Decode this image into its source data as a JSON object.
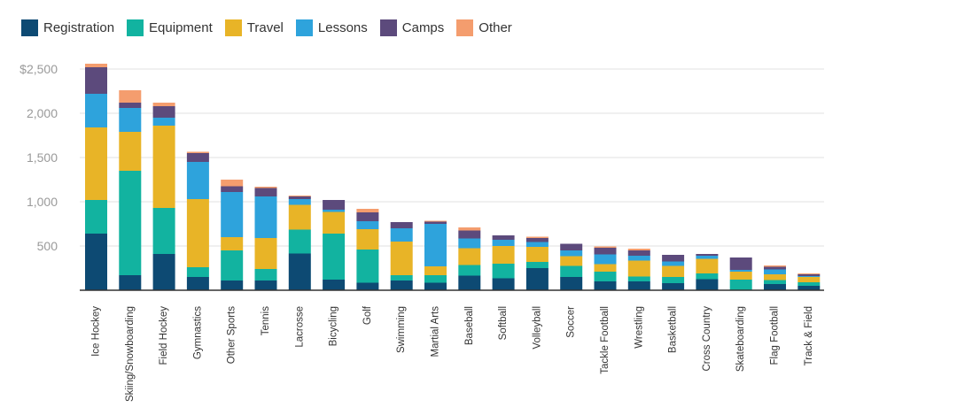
{
  "chart_data": {
    "type": "bar",
    "stacked": true,
    "categories": [
      "Ice Hockey",
      "Skiing/Snowboarding",
      "Field Hockey",
      "Gymnastics",
      "Other Sports",
      "Tennis",
      "Lacrosse",
      "Bicycling",
      "Golf",
      "Swimming",
      "Martial Arts",
      "Baseball",
      "Softball",
      "Volleyball",
      "Soccer",
      "Tackle Football",
      "Wrestling",
      "Basketball",
      "Cross Country",
      "Skateboarding",
      "Flag Football",
      "Track & Field"
    ],
    "series": [
      {
        "name": "Registration",
        "color": "#0d4a73",
        "values": [
          640,
          170,
          410,
          150,
          110,
          110,
          415,
          120,
          85,
          110,
          85,
          165,
          135,
          250,
          150,
          100,
          100,
          80,
          125,
          0,
          70,
          50
        ]
      },
      {
        "name": "Equipment",
        "color": "#12b3a0",
        "values": [
          380,
          1180,
          520,
          110,
          340,
          130,
          270,
          520,
          375,
          60,
          85,
          120,
          165,
          70,
          125,
          110,
          55,
          70,
          65,
          120,
          45,
          40
        ]
      },
      {
        "name": "Travel",
        "color": "#e8b427",
        "values": [
          820,
          440,
          930,
          770,
          150,
          350,
          280,
          245,
          230,
          380,
          100,
          190,
          200,
          170,
          110,
          85,
          180,
          125,
          165,
          90,
          65,
          60
        ]
      },
      {
        "name": "Lessons",
        "color": "#2ea3dc",
        "values": [
          380,
          270,
          90,
          420,
          510,
          470,
          65,
          25,
          90,
          150,
          480,
          110,
          70,
          55,
          65,
          110,
          55,
          50,
          35,
          20,
          55,
          10
        ]
      },
      {
        "name": "Camps",
        "color": "#5c4a7c",
        "values": [
          300,
          60,
          130,
          100,
          65,
          95,
          30,
          110,
          100,
          70,
          25,
          90,
          50,
          45,
          75,
          75,
          60,
          75,
          20,
          140,
          30,
          20
        ]
      },
      {
        "name": "Other",
        "color": "#f49d6e",
        "values": [
          40,
          140,
          40,
          15,
          75,
          15,
          10,
          0,
          40,
          0,
          10,
          35,
          0,
          15,
          0,
          15,
          20,
          0,
          0,
          0,
          15,
          10
        ]
      }
    ],
    "y_ticks": [
      {
        "value": 500,
        "label": "500"
      },
      {
        "value": 1000,
        "label": "1,000"
      },
      {
        "value": 1500,
        "label": "1,500"
      },
      {
        "value": 2000,
        "label": "2,000"
      },
      {
        "value": 2500,
        "label": "$2,500"
      }
    ],
    "ylim": [
      0,
      2600
    ],
    "grid": true,
    "legend_position": "top-left",
    "title": "",
    "xlabel": "",
    "ylabel": ""
  }
}
